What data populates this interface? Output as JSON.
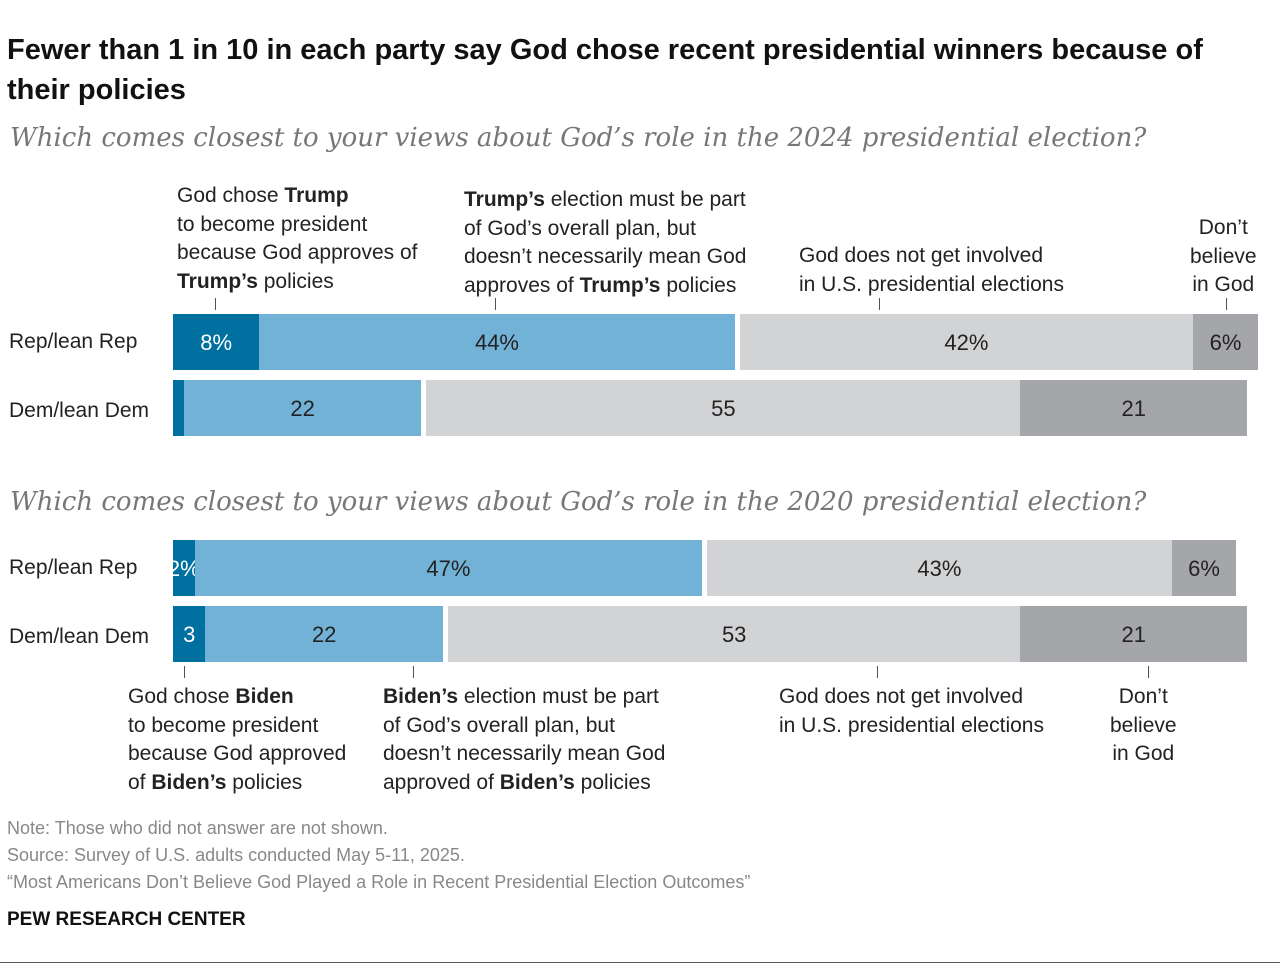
{
  "title": "Fewer than 1 in 10 in each party say God chose recent presidential winners because of their policies",
  "notes": [
    "Note: Those who did not answer are not shown.",
    "Source: Survey of U.S. adults conducted May 5-11, 2025.",
    "“Most Americans Don’t Believe God Played a Role in Recent Presidential Election Outcomes”"
  ],
  "brand": "PEW RESEARCH CENTER",
  "colors": [
    "#0070a0",
    "#73b2d7",
    "#d2d3d5",
    "#a5a6a9"
  ],
  "chart_data": [
    {
      "type": "bar",
      "stacked": true,
      "orientation": "horizontal",
      "title": "Which comes closest to your views about God’s role in the 2024 presidential election?",
      "categories": [
        "Rep/lean Rep",
        "Dem/lean Dem"
      ],
      "series": [
        {
          "name": "God chose Trump to become president because God approves of Trump’s policies",
          "values": [
            8,
            1
          ],
          "labels": [
            "8%",
            ""
          ],
          "legend_lines": [
            [
              [
                "God chose ",
                0
              ],
              [
                "Trump",
                1
              ]
            ],
            [
              [
                "to become president",
                0
              ]
            ],
            [
              [
                "because God approves of",
                0
              ]
            ],
            [
              [
                "Trump’s",
                1
              ],
              [
                " policies",
                0
              ]
            ]
          ]
        },
        {
          "name": "Trump’s election must be part of God’s overall plan, but doesn’t necessarily mean God approves of Trump’s policies",
          "values": [
            44,
            22
          ],
          "labels": [
            "44%",
            "22"
          ],
          "legend_lines": [
            [
              [
                "Trump’s",
                1
              ],
              [
                " election must be part",
                0
              ]
            ],
            [
              [
                "of God’s overall plan, but",
                0
              ]
            ],
            [
              [
                "doesn’t necessarily mean God",
                0
              ]
            ],
            [
              [
                "approves of ",
                0
              ],
              [
                "Trump’s",
                1
              ],
              [
                " policies",
                0
              ]
            ]
          ]
        },
        {
          "name": "God does not get involved in U.S. presidential elections",
          "values": [
            42,
            55
          ],
          "labels": [
            "42%",
            "55"
          ],
          "legend_lines": [
            [
              [
                "God does not get involved",
                0
              ]
            ],
            [
              [
                "in U.S. presidential elections",
                0
              ]
            ]
          ]
        },
        {
          "name": "Don’t believe in God",
          "values": [
            6,
            21
          ],
          "labels": [
            "6%",
            "21"
          ],
          "legend_lines": [
            [
              [
                "Don’t",
                0
              ]
            ],
            [
              [
                "believe",
                0
              ]
            ],
            [
              [
                "in God",
                0
              ]
            ]
          ]
        }
      ]
    },
    {
      "type": "bar",
      "stacked": true,
      "orientation": "horizontal",
      "title": "Which comes closest to your views about God’s role in the 2020 presidential election?",
      "categories": [
        "Rep/lean Rep",
        "Dem/lean Dem"
      ],
      "series": [
        {
          "name": "God chose Biden to become president because God approved of Biden’s policies",
          "values": [
            2,
            3
          ],
          "labels": [
            "2%",
            "3"
          ],
          "legend_lines": [
            [
              [
                "God chose ",
                0
              ],
              [
                "Biden",
                1
              ]
            ],
            [
              [
                "to become president",
                0
              ]
            ],
            [
              [
                "because God approved",
                0
              ]
            ],
            [
              [
                "of ",
                0
              ],
              [
                "Biden’s",
                1
              ],
              [
                " policies",
                0
              ]
            ]
          ]
        },
        {
          "name": "Biden’s election must be part of God’s overall plan, but doesn’t necessarily mean God approved of Biden’s policies",
          "values": [
            47,
            22
          ],
          "labels": [
            "47%",
            "22"
          ],
          "legend_lines": [
            [
              [
                "Biden’s",
                1
              ],
              [
                " election must be part",
                0
              ]
            ],
            [
              [
                "of God’s overall plan, but",
                0
              ]
            ],
            [
              [
                "doesn’t necessarily mean God",
                0
              ]
            ],
            [
              [
                "approved of ",
                0
              ],
              [
                "Biden’s",
                1
              ],
              [
                " policies",
                0
              ]
            ]
          ]
        },
        {
          "name": "God does not get involved in U.S. presidential elections",
          "values": [
            43,
            53
          ],
          "labels": [
            "43%",
            "53"
          ],
          "legend_lines": [
            [
              [
                "God does not get involved",
                0
              ]
            ],
            [
              [
                "in U.S. presidential elections",
                0
              ]
            ]
          ]
        },
        {
          "name": "Don’t believe in God",
          "values": [
            6,
            21
          ],
          "labels": [
            "6%",
            "21"
          ],
          "legend_lines": [
            [
              [
                "Don’t",
                0
              ]
            ],
            [
              [
                "believe",
                0
              ]
            ],
            [
              [
                "in God",
                0
              ]
            ]
          ]
        }
      ]
    }
  ]
}
